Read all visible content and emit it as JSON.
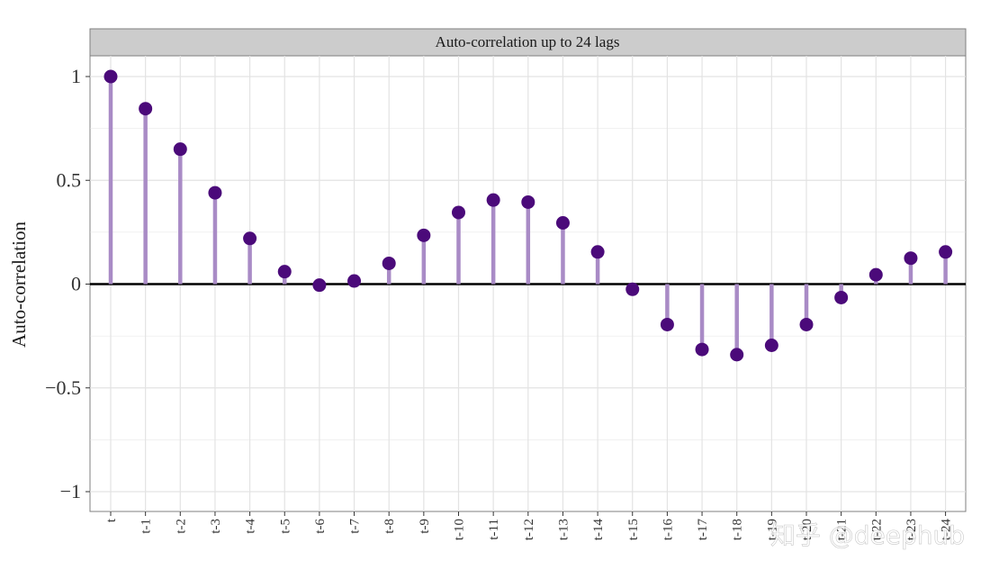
{
  "chart_data": {
    "type": "lollipop",
    "title": "Auto-correlation up to 24 lags",
    "xlabel": "",
    "ylabel": "Auto-correlation",
    "ylim": [
      -1.1,
      1.1
    ],
    "yticks": [
      -1,
      -0.5,
      0,
      0.5,
      1
    ],
    "ytick_labels": [
      "−1",
      "−0.5",
      "0",
      "0.5",
      "1"
    ],
    "categories": [
      "t",
      "t-1",
      "t-2",
      "t-3",
      "t-4",
      "t-5",
      "t-6",
      "t-7",
      "t-8",
      "t-9",
      "t-10",
      "t-11",
      "t-12",
      "t-13",
      "t-14",
      "t-15",
      "t-16",
      "t-17",
      "t-18",
      "t-19",
      "t-20",
      "t-21",
      "t-22",
      "t-23",
      "t-24"
    ],
    "values": [
      1.0,
      0.845,
      0.65,
      0.44,
      0.22,
      0.06,
      -0.005,
      0.015,
      0.1,
      0.235,
      0.345,
      0.405,
      0.395,
      0.295,
      0.155,
      -0.025,
      -0.195,
      -0.315,
      -0.34,
      -0.295,
      -0.195,
      -0.065,
      0.045,
      0.125,
      0.155
    ],
    "grid": true,
    "colors": {
      "stem": "#a98bc6",
      "point": "#4b0a7a",
      "zero_line": "#000000",
      "grid": "#e3e3e3",
      "strip": "#cccccc",
      "border": "#7f7f7f"
    }
  },
  "watermark": "知乎 @deephub"
}
